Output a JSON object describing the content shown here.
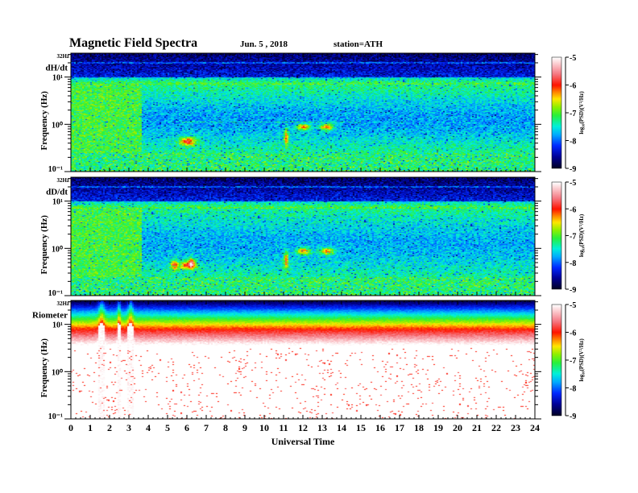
{
  "header": {
    "title": "Magnetic  Field  Spectra",
    "date": "Jun. 5  , 2018",
    "station": "station=ATH"
  },
  "chart_data": {
    "type": "heatmap",
    "title": "Magnetic Field Spectra",
    "xlabel": "Universal Time",
    "xlim": [
      0,
      24
    ],
    "x_ticks": [
      "0",
      "1",
      "2",
      "3",
      "4",
      "5",
      "6",
      "7",
      "8",
      "9",
      "10",
      "11",
      "12",
      "13",
      "14",
      "15",
      "16",
      "17",
      "18",
      "19",
      "20",
      "21",
      "22",
      "23",
      "24"
    ],
    "ylabel": "Frequency (Hz)",
    "yscale": "log",
    "ylim": [
      0.1,
      32
    ],
    "y_ticks": [
      {
        "value": 32,
        "label": "32Hz"
      },
      {
        "value": 10,
        "label": "10¹"
      },
      {
        "value": 1,
        "label": "10⁰"
      },
      {
        "value": 0.1,
        "label": "10⁻¹"
      }
    ],
    "colorbar": {
      "label": "log₁₀(PSD)(V²/Hz)",
      "range": [
        -9,
        -5
      ],
      "ticks": [
        "-5",
        "-6",
        "-7",
        "-8",
        "-9"
      ]
    },
    "panels": [
      {
        "name": "dH/dt"
      },
      {
        "name": "dD/dt"
      },
      {
        "name": "Riometer"
      }
    ]
  }
}
